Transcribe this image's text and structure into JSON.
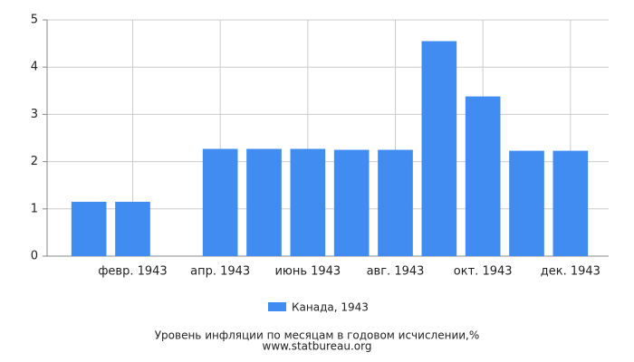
{
  "chart_data": {
    "type": "bar",
    "title": "Уровень инфляции по месяцам в годовом исчислении,%",
    "subtitle": "www.statbureau.org",
    "categories": [
      null,
      "февр. 1943",
      null,
      "апр. 1943",
      null,
      "июнь 1943",
      null,
      "авг. 1943",
      null,
      "окт. 1943",
      null,
      "дек. 1943"
    ],
    "series": [
      {
        "name": "Канада, 1943",
        "color": "#418cf0",
        "values": [
          1.15,
          1.15,
          null,
          2.27,
          2.27,
          2.27,
          2.25,
          2.25,
          4.55,
          3.38,
          2.23,
          2.23
        ]
      }
    ],
    "ylim": [
      0,
      5
    ],
    "yticks": [
      0,
      1,
      2,
      3,
      4,
      5
    ],
    "grid": true
  }
}
